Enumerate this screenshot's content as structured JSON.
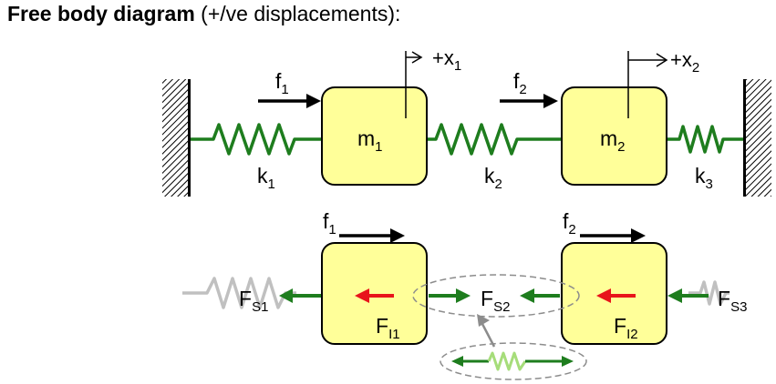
{
  "title": {
    "bold": "Free body diagram",
    "rest": " (+/ve displacements):"
  },
  "top": {
    "mass1": {
      "sym": "m",
      "sub": "1"
    },
    "mass2": {
      "sym": "m",
      "sub": "2"
    },
    "force1": {
      "sym": "f",
      "sub": "1"
    },
    "force2": {
      "sym": "f",
      "sub": "2"
    },
    "disp1": {
      "sym": "+x",
      "sub": "1"
    },
    "disp2": {
      "sym": "+x",
      "sub": "2"
    },
    "spring1": {
      "sym": "k",
      "sub": "1"
    },
    "spring2": {
      "sym": "k",
      "sub": "2"
    },
    "spring3": {
      "sym": "k",
      "sub": "3"
    }
  },
  "bottom": {
    "force1": {
      "sym": "f",
      "sub": "1"
    },
    "force2": {
      "sym": "f",
      "sub": "2"
    },
    "fs1": {
      "sym": "F",
      "sub": "S1"
    },
    "fs2": {
      "sym": "F",
      "sub": "S2"
    },
    "fs3": {
      "sym": "F",
      "sub": "S3"
    },
    "fi1": {
      "sym": "F",
      "sub": "I1"
    },
    "fi2": {
      "sym": "F",
      "sub": "I2"
    }
  },
  "colors": {
    "mass_fill": "#ffff99",
    "spring_green": "#1e7d1e",
    "inertia_red": "#e8141b",
    "ghost_spring": "#c0c0c0",
    "light_spring": "#a6dd7a",
    "ellipse": "#8c8c8c"
  }
}
